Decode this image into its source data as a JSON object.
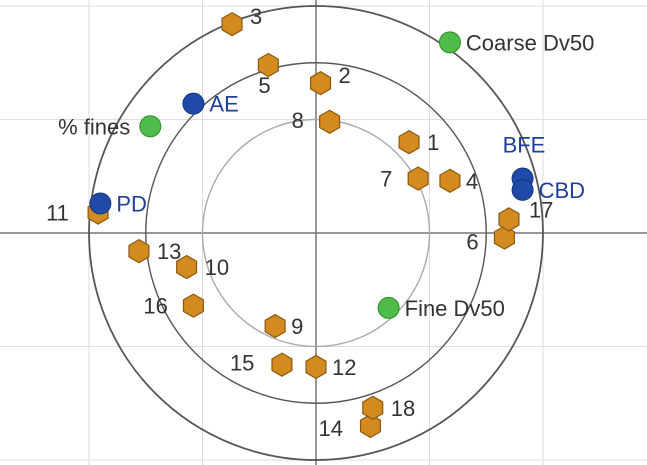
{
  "chart_data": {
    "type": "scatter",
    "chart_kind": "biplot-correlation-loadings",
    "x_range": [
      -1.1,
      1.45
    ],
    "y_range": [
      -1.02,
      1.0
    ],
    "circles": [
      0.5,
      1.0
    ],
    "gridlines": true,
    "colors": {
      "observation": "#d38a1e",
      "observation_edge": "#8a5a12",
      "variable_blue": "#1f4aa8",
      "variable_green": "#4fbb48",
      "circle": "#555555",
      "circle_inner": "#aaaaaa",
      "grid": "#dddddd",
      "axis": "#777777"
    },
    "observations": [
      {
        "label": "1",
        "x": 0.41,
        "y": 0.4
      },
      {
        "label": "2",
        "x": 0.02,
        "y": 0.66
      },
      {
        "label": "3",
        "x": -0.37,
        "y": 0.92
      },
      {
        "label": "4",
        "x": 0.59,
        "y": 0.23
      },
      {
        "label": "5",
        "x": -0.21,
        "y": 0.74
      },
      {
        "label": "6",
        "x": 0.83,
        "y": -0.02
      },
      {
        "label": "7",
        "x": 0.45,
        "y": 0.24
      },
      {
        "label": "8",
        "x": 0.06,
        "y": 0.49
      },
      {
        "label": "9",
        "x": -0.18,
        "y": -0.41
      },
      {
        "label": "10",
        "x": -0.57,
        "y": -0.15
      },
      {
        "label": "11",
        "x": -0.96,
        "y": 0.09
      },
      {
        "label": "12",
        "x": 0.0,
        "y": -0.59
      },
      {
        "label": "13",
        "x": -0.78,
        "y": -0.08
      },
      {
        "label": "14",
        "x": 0.24,
        "y": -0.85
      },
      {
        "label": "15",
        "x": -0.15,
        "y": -0.58
      },
      {
        "label": "16",
        "x": -0.54,
        "y": -0.32
      },
      {
        "label": "17",
        "x": 0.85,
        "y": 0.06
      },
      {
        "label": "18",
        "x": 0.25,
        "y": -0.77
      }
    ],
    "variables": [
      {
        "label": "Coarse Dv50",
        "x": 0.59,
        "y": 0.84,
        "color": "green",
        "label_side": "right"
      },
      {
        "label": "% fines",
        "x": -0.73,
        "y": 0.47,
        "color": "green",
        "label_side": "left"
      },
      {
        "label": "Fine Dv50",
        "x": 0.32,
        "y": -0.33,
        "color": "green",
        "label_side": "right"
      },
      {
        "label": "AE",
        "x": -0.54,
        "y": 0.57,
        "color": "blue",
        "label_side": "right"
      },
      {
        "label": "PD",
        "x": -0.95,
        "y": 0.13,
        "color": "blue",
        "label_side": "right"
      },
      {
        "label": "BFE",
        "x": 0.91,
        "y": 0.24,
        "color": "blue",
        "label_side": "above"
      },
      {
        "label": "CBD",
        "x": 0.91,
        "y": 0.19,
        "color": "blue",
        "label_side": "right"
      }
    ]
  }
}
